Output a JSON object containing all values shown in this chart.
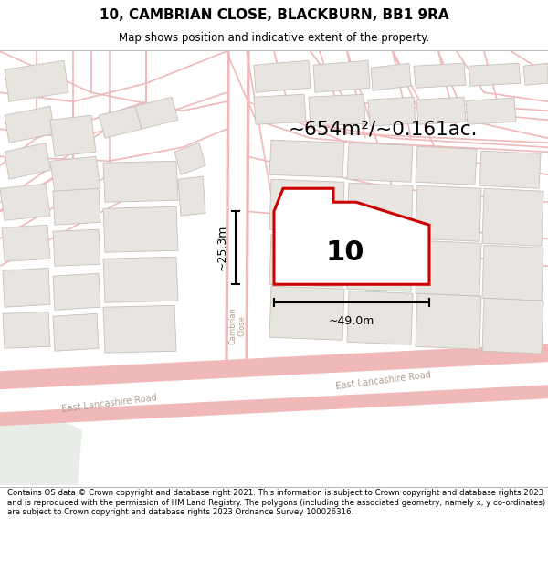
{
  "title": "10, CAMBRIAN CLOSE, BLACKBURN, BB1 9RA",
  "subtitle": "Map shows position and indicative extent of the property.",
  "area_text": "~654m²/~0.161ac.",
  "width_label": "~49.0m",
  "height_label": "~25.3m",
  "property_number": "10",
  "footer": "Contains OS data © Crown copyright and database right 2021. This information is subject to Crown copyright and database rights 2023 and is reproduced with the permission of HM Land Registry. The polygons (including the associated geometry, namely x, y co-ordinates) are subject to Crown copyright and database rights 2023 Ordnance Survey 100026316.",
  "bg_color": "#f7f5f3",
  "road_color": "#f0b8b8",
  "road_lw": 1.2,
  "building_fill": "#e8e4e0",
  "building_stroke": "#c8bfb8",
  "highlight_fill": "#ffffff",
  "highlight_stroke": "#cc0000",
  "road_label_color": "#b0a090",
  "dim_color": "#1a1a1a",
  "green_area": "#e8ede8"
}
